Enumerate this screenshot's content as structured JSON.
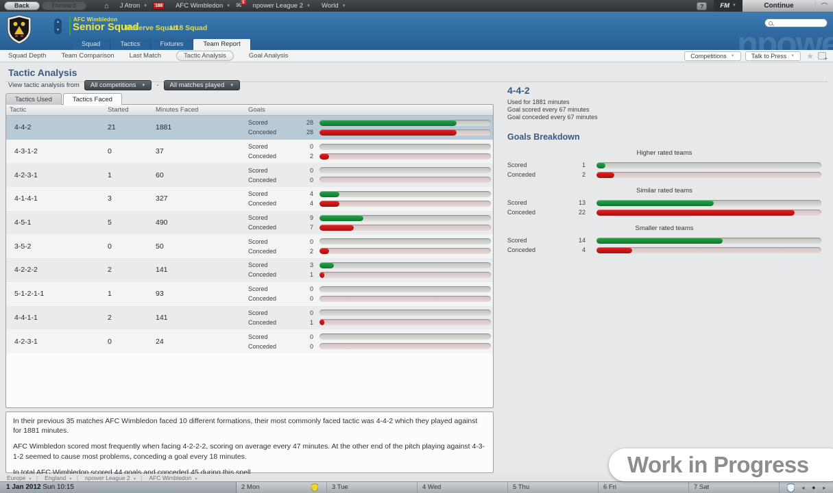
{
  "topbar": {
    "back": "Back",
    "forward": "Forward",
    "menus": [
      "J Atron",
      "AFC Wimbledon",
      "npower League 2",
      "World"
    ],
    "manager_badge": "188",
    "mail_badge": "1",
    "help": "?",
    "fm": "FM",
    "continue_label": "Continue"
  },
  "header": {
    "club": "AFC Wimbledon",
    "title": "Senior Squad",
    "link_reserve": "Reserve Squad",
    "link_u18": "U18 Squad",
    "watermark": "npower",
    "tabs": [
      {
        "label": "Squad"
      },
      {
        "label": "Tactics"
      },
      {
        "label": "Fixtures"
      },
      {
        "label": "Team Report",
        "active": true
      }
    ]
  },
  "subnav": {
    "items": [
      "Squad Depth",
      "Team Comparison",
      "Last Match",
      "Tactic Analysis",
      "Goal Analysis"
    ],
    "active_item": "Tactic Analysis",
    "competitions_button": "Competitions",
    "press_button": "Talk to Press"
  },
  "page": {
    "title": "Tactic Analysis",
    "filter_label": "View tactic analysis from",
    "filter_competitions": "All competitions",
    "filter_matches": "All matches played",
    "filter_separator": "-",
    "tab_used": "Tactics Used",
    "tab_faced": "Tactics Faced",
    "active_tab": "Tactics Faced"
  },
  "table": {
    "columns": [
      "Tactic",
      "Started",
      "Minutes Faced",
      "Goals"
    ],
    "scored_label": "Scored",
    "conceded_label": "Conceded",
    "bar_scale_max": 35,
    "rows": [
      {
        "tactic": "4-4-2",
        "started": 21,
        "minutes": 1881,
        "scored": 28,
        "conceded": 28,
        "selected": true
      },
      {
        "tactic": "4-3-1-2",
        "started": 0,
        "minutes": 37,
        "scored": 0,
        "conceded": 2
      },
      {
        "tactic": "4-2-3-1",
        "started": 1,
        "minutes": 60,
        "scored": 0,
        "conceded": 0
      },
      {
        "tactic": "4-1-4-1",
        "started": 3,
        "minutes": 327,
        "scored": 4,
        "conceded": 4
      },
      {
        "tactic": "4-5-1",
        "started": 5,
        "minutes": 490,
        "scored": 9,
        "conceded": 7
      },
      {
        "tactic": "3-5-2",
        "started": 0,
        "minutes": 50,
        "scored": 0,
        "conceded": 2
      },
      {
        "tactic": "4-2-2-2",
        "started": 2,
        "minutes": 141,
        "scored": 3,
        "conceded": 1
      },
      {
        "tactic": "5-1-2-1-1",
        "started": 1,
        "minutes": 93,
        "scored": 0,
        "conceded": 0
      },
      {
        "tactic": "4-4-1-1",
        "started": 2,
        "minutes": 141,
        "scored": 0,
        "conceded": 1
      },
      {
        "tactic": "4-2-3-1",
        "started": 0,
        "minutes": 24,
        "scored": 0,
        "conceded": 0
      }
    ]
  },
  "summary": {
    "paragraphs": [
      "In their previous 35 matches AFC Wimbledon faced 10 different formations, their most commonly faced tactic was 4-4-2 which they played against for 1881 minutes.",
      "AFC Wimbledon scored most frequently when facing 4-2-2-2, scoring on average every 47 minutes. At the other end of the pitch playing against 4-3-1-2 seemed to cause most problems, conceding a goal every 18 minutes.",
      "In total AFC Wimbledon scored 44 goals and conceded 45 during this spell."
    ]
  },
  "detail": {
    "title": "4-4-2",
    "lines": [
      "Used for 1881 minutes",
      "Goal scored every 67 minutes",
      "Goal conceded every 67 minutes"
    ],
    "breakdown_title": "Goals Breakdown",
    "scored_label": "Scored",
    "conceded_label": "Conceded",
    "bar_scale_max": 25,
    "sections": [
      {
        "label": "Higher rated teams",
        "scored": 1,
        "conceded": 2
      },
      {
        "label": "Similar rated teams",
        "scored": 13,
        "conceded": 22
      },
      {
        "label": "Smaller rated teams",
        "scored": 14,
        "conceded": 4
      }
    ]
  },
  "breadcrumb": [
    "Europe",
    "England",
    "npower League 2",
    "AFC Wimbledon"
  ],
  "datebar": {
    "current": "1 Jan 2012",
    "current_detail": "Sun 10:15",
    "days": [
      "2 Mon",
      "3 Tue",
      "4 Wed",
      "5 Thu",
      "6 Fri",
      "7 Sat"
    ]
  },
  "watermark": "Work in Progress",
  "colors": {
    "scored_green": "#1d9540",
    "conceded_red": "#cf1717",
    "header_blue": "#2f6ba2",
    "accent_yellow": "#e9e345",
    "selected_row": "#b9cad7"
  }
}
